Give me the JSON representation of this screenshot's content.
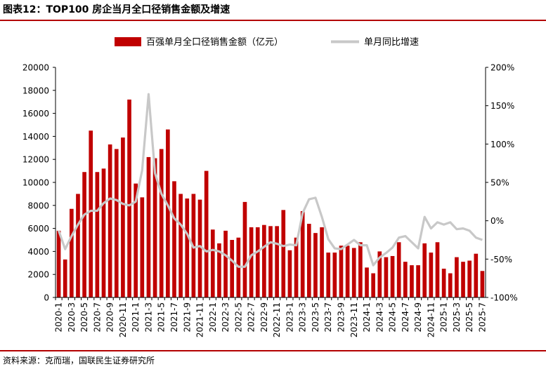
{
  "title": "图表12：TOP100 房企当月全口径销售金额及增速",
  "source": "资料来源：克而瑞，国联民生证券研究所",
  "colors": {
    "bar": "#c00000",
    "line": "#c8c8c8",
    "rule": "#b30000"
  },
  "chart_data": {
    "type": "bar",
    "legend_placement": "top",
    "grid": false,
    "categories": [
      "2020-1",
      "2020-2",
      "2020-3",
      "2020-4",
      "2020-5",
      "2020-6",
      "2020-7",
      "2020-8",
      "2020-9",
      "2020-10",
      "2020-11",
      "2020-12",
      "2021-1",
      "2021-2",
      "2021-3",
      "2021-4",
      "2021-5",
      "2021-6",
      "2021-7",
      "2021-8",
      "2021-9",
      "2021-10",
      "2021-11",
      "2021-12",
      "2022-1",
      "2022-2",
      "2022-3",
      "2022-4",
      "2022-5",
      "2022-6",
      "2022-7",
      "2022-8",
      "2022-9",
      "2022-10",
      "2022-11",
      "2022-12",
      "2023-1",
      "2023-2",
      "2023-3",
      "2023-4",
      "2023-5",
      "2023-6",
      "2023-7",
      "2023-8",
      "2023-9",
      "2023-10",
      "2023-11",
      "2023-12",
      "2024-1",
      "2024-2",
      "2024-3",
      "2024-4",
      "2024-5",
      "2024-6",
      "2024-7",
      "2024-8",
      "2024-9",
      "2024-10",
      "2024-11",
      "2024-12",
      "2025-1",
      "2025-2",
      "2025-3",
      "2025-4",
      "2025-5",
      "2025-6",
      "2025-7"
    ],
    "xtick_labels": [
      "2020-1",
      "2020-3",
      "2020-5",
      "2020-7",
      "2020-9",
      "2020-11",
      "2021-1",
      "2021-3",
      "2021-5",
      "2021-7",
      "2021-9",
      "2021-11",
      "2022-1",
      "2022-3",
      "2022-5",
      "2022-7",
      "2022-9",
      "2022-11",
      "2023-1",
      "2023-3",
      "2023-5",
      "2023-7",
      "2023-9",
      "2023-11",
      "2024-1",
      "2024-3",
      "2024-5",
      "2024-7",
      "2024-9",
      "2024-11",
      "2025-1",
      "2025-3",
      "2025-5",
      "2025-7"
    ],
    "series": [
      {
        "name": "百强单月全口径销售金额（亿元）",
        "type": "bar",
        "axis": "left",
        "values": [
          5800,
          3300,
          7700,
          9000,
          10900,
          14500,
          10900,
          11200,
          13300,
          12900,
          13900,
          17200,
          9900,
          8700,
          12200,
          12100,
          12900,
          14600,
          10100,
          9000,
          8600,
          9000,
          8500,
          11000,
          5900,
          4700,
          5800,
          5000,
          5200,
          8300,
          6100,
          6100,
          6300,
          6200,
          6200,
          7600,
          4100,
          5200,
          7500,
          6400,
          5600,
          6100,
          3900,
          3900,
          4500,
          4500,
          4300,
          4800,
          2600,
          2100,
          4000,
          3500,
          3600,
          4800,
          3100,
          2800,
          2800,
          4700,
          3900,
          4800,
          2500,
          2100,
          3500,
          3100,
          3200,
          3800,
          2300
        ]
      },
      {
        "name": "单月同比增速",
        "type": "line",
        "axis": "right",
        "values": [
          -13,
          -37,
          -20,
          -5,
          8,
          13,
          13,
          23,
          29,
          27,
          22,
          20,
          25,
          66,
          165,
          62,
          35,
          20,
          3,
          -5,
          -17,
          -35,
          -33,
          -40,
          -38,
          -40,
          -45,
          -52,
          -60,
          -60,
          -45,
          -40,
          -34,
          -28,
          -30,
          -33,
          -31,
          -32,
          10,
          28,
          30,
          5,
          -24,
          -36,
          -37,
          -31,
          -25,
          -32,
          -32,
          -58,
          -48,
          -42,
          -35,
          -22,
          -20,
          -28,
          -36,
          5,
          -10,
          -2,
          -5,
          -2,
          -11,
          -10,
          -13,
          -22,
          -25
        ]
      }
    ],
    "y_left": {
      "min": 0,
      "max": 20000,
      "ticks": [
        0,
        2000,
        4000,
        6000,
        8000,
        10000,
        12000,
        14000,
        16000,
        18000,
        20000
      ]
    },
    "y_right": {
      "min": -100,
      "max": 200,
      "ticks": [
        "-100%",
        "-50%",
        "0%",
        "50%",
        "100%",
        "150%",
        "200%"
      ]
    }
  }
}
